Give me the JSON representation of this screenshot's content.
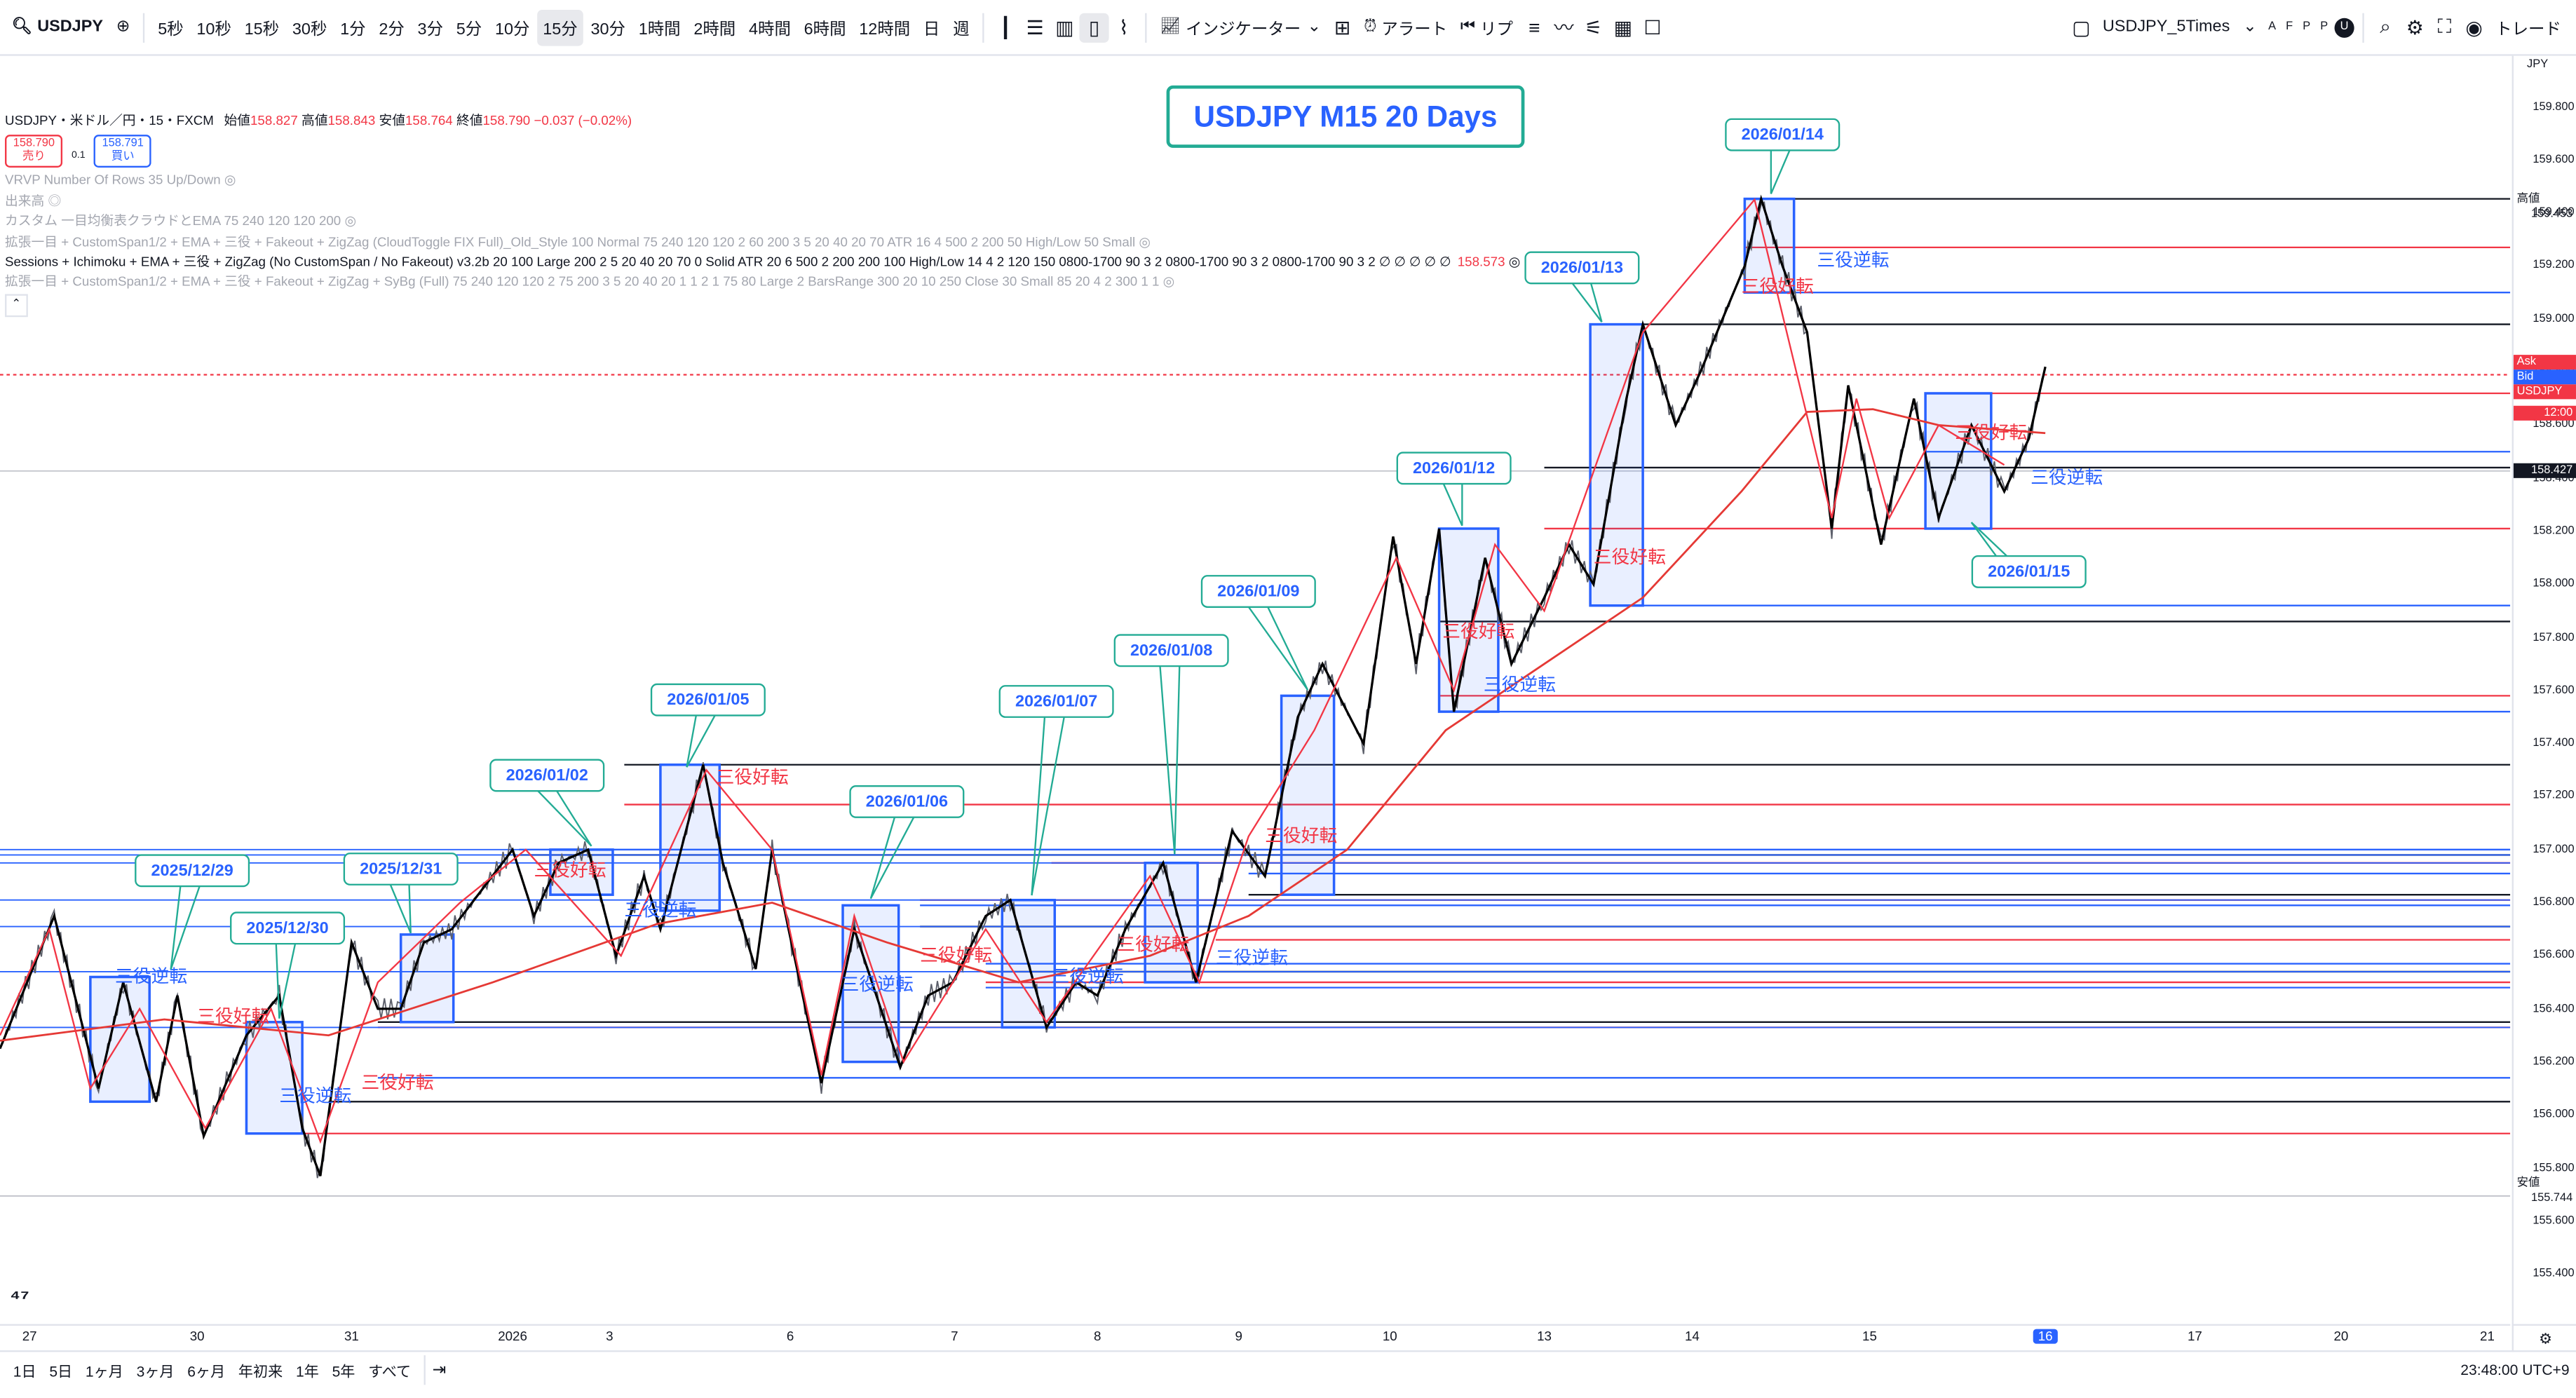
{
  "topbar": {
    "symbol": "USDJPY",
    "intervals": [
      "5秒",
      "10秒",
      "15秒",
      "30秒",
      "1分",
      "2分",
      "3分",
      "5分",
      "10分",
      "15分",
      "30分",
      "1時間",
      "2時間",
      "4時間",
      "6時間",
      "12時間",
      "日",
      "週"
    ],
    "active_interval": "15分",
    "indicators_label": "インジケーター",
    "alert_label": "アラート",
    "replay_label": "リプ",
    "layout_name": "USDJPY_5Times",
    "layout_letters": [
      "A",
      "F",
      "P",
      "P"
    ],
    "avatar_letter": "U",
    "trade_label": "トレード",
    "icon_names": [
      "candle-type-icon",
      "bar-type-icon",
      "indicator-icon",
      "alert-icon",
      "replay-icon",
      "layout-icon",
      "search-icon",
      "settings-icon",
      "fullscreen-icon",
      "camera-icon"
    ]
  },
  "legend": {
    "title": "USDJPY・米ドル／円・15・FXCM",
    "open_label": "始値",
    "open": "158.827",
    "high_label": "高値",
    "high": "158.843",
    "low_label": "安値",
    "low": "158.764",
    "close_label": "終値",
    "close": "158.790",
    "change": "−0.037 (−0.02%)",
    "sell_price": "158.790",
    "sell_label": "売り",
    "spread": "0.1",
    "buy_price": "158.791",
    "buy_label": "買い",
    "indicators": [
      "VRVP Number Of Rows 35 Up/Down",
      "出来高",
      "カスタム 一目均衡表クラウドとEMA 75 240 120 120 200",
      "拡張一目 + CustomSpan1/2 + EMA + 三役 + Fakeout + ZigZag (CloudToggle FIX Full)_Old_Style 100 Normal 75 240 120 120 2 60 200 3 5 20 40 20 70 ATR 16 4 500 2 200 50 High/Low 50 Small",
      "Sessions + Ichimoku + EMA + 三役 + ZigZag (No CustomSpan / No Fakeout) v3.2b 20 100 Large 200 2 5 20 40 20 70 0 Solid ATR 20 6 500 2 200 200 100 High/Low 14 4 2 120 150 0800-1700 90 3 2 0800-1700 90 3 2 0800-1700 90 3 2  ∅ ∅ ∅ ∅ ∅",
      "拡張一目 + CustomSpan1/2 + EMA + 三役 + Fakeout + ZigZag + SyBg (Full) 75 240 120 120 2 75 200 3 5 20 40 20 1 1 2 1 75 80 Large 2 BarsRange 300 20 10 250 Close 30 Small 85 20 4 2 300 1 1"
    ],
    "sessions_value": "158.573"
  },
  "chart_title": "USDJPY M15 20 Days",
  "date_callouts": [
    "2025/12/29",
    "2025/12/30",
    "2025/12/31",
    "2026/01/02",
    "2026/01/05",
    "2026/01/06",
    "2026/01/07",
    "2026/01/08",
    "2026/01/09",
    "2026/01/12",
    "2026/01/13",
    "2026/01/14",
    "2026/01/15"
  ],
  "signals": {
    "reversal": "三役逆転",
    "good": "三役好転"
  },
  "price_axis": {
    "currency": "JPY",
    "ticks": [
      "159.800",
      "159.600",
      "159.400",
      "159.200",
      "159.000",
      "158.800",
      "158.600",
      "158.400",
      "158.200",
      "158.000",
      "157.800",
      "157.600",
      "157.400",
      "157.200",
      "157.000",
      "156.800",
      "156.600",
      "156.400",
      "156.200",
      "156.000",
      "155.800",
      "155.600",
      "155.400"
    ],
    "high_label": "高値",
    "high_value": "159.453",
    "low_label": "安値",
    "low_value": "155.744",
    "ask_label": "Ask",
    "ask_value": "158.791",
    "bid_label": "Bid",
    "bid_value": "158.790",
    "symbol_tag": "USDJPY",
    "last_value": "158.790",
    "countdown": "12:00",
    "crosshair_value": "158.427"
  },
  "time_axis": [
    "27",
    "30",
    "31",
    "2026",
    "3",
    "6",
    "7",
    "8",
    "9",
    "10",
    "13",
    "14",
    "15",
    "16",
    "17",
    "20",
    "21"
  ],
  "bottombar": {
    "ranges": [
      "1日",
      "5日",
      "1ヶ月",
      "3ヶ月",
      "6ヶ月",
      "年初来",
      "1年",
      "5年",
      "すべて"
    ],
    "time": "23:48:00 UTC+9"
  },
  "colors": {
    "up_box": "#2962ff",
    "signal_red": "#f23645",
    "signal_blue": "#2962ff",
    "callout_border": "#22ab94",
    "ema": "#e53935",
    "zigzag": "#000000"
  },
  "chart_data": {
    "type": "line",
    "title": "USDJPY M15 20 Days",
    "xlabel": "",
    "ylabel": "JPY",
    "ylim": [
      155.4,
      159.9
    ],
    "x": [
      "27",
      "30",
      "31",
      "2026",
      "3",
      "6",
      "7",
      "8",
      "9",
      "10",
      "13",
      "14",
      "15",
      "16"
    ],
    "series": [
      {
        "name": "USDJPY",
        "values": [
          156.25,
          156.55,
          155.9,
          157.0,
          157.32,
          156.6,
          156.35,
          156.55,
          157.6,
          158.2,
          158.8,
          159.45,
          158.3,
          158.79
        ]
      }
    ],
    "last_price": 158.79,
    "high": 159.453,
    "low": 155.744,
    "horizontal_levels": [
      159.453,
      159.27,
      159.1,
      158.98,
      158.72,
      158.5,
      158.44,
      158.21,
      157.92,
      157.86,
      157.58,
      157.52,
      157.32,
      157.17,
      157.0,
      156.98,
      156.95,
      156.91,
      156.83,
      156.81,
      156.79,
      156.71,
      156.66,
      156.57,
      156.54,
      156.5,
      156.48,
      156.35,
      156.33,
      156.14,
      156.05,
      155.93
    ],
    "grid": false
  }
}
